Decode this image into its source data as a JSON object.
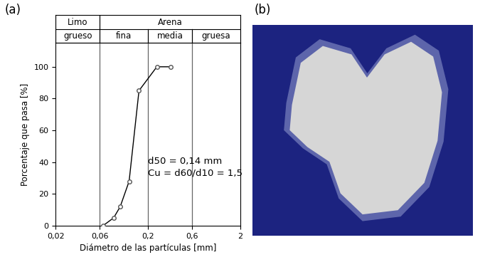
{
  "panel_labels": [
    "(a)",
    "(b)"
  ],
  "chart_data": {
    "type": "line",
    "xlabel": "Diámetro de las partículas [mm]",
    "ylabel": "Porcentaje que pasa [%]",
    "log": "x",
    "x": [
      0.065,
      0.085,
      0.1,
      0.125,
      0.16,
      0.25,
      0.35
    ],
    "values": [
      0,
      5,
      12,
      28,
      85,
      100,
      100
    ],
    "color": "#000000",
    "marker": "o",
    "xlim": [
      0.02,
      2
    ],
    "xticks": [
      {
        "value": 0.02,
        "label": "0,02"
      },
      {
        "value": 0.06,
        "label": "0,06"
      },
      {
        "value": 0.2,
        "label": "0,2"
      },
      {
        "value": 0.6,
        "label": "0,6"
      },
      2
    ],
    "ylim": [
      0,
      115
    ],
    "yticks": [
      0,
      20,
      40,
      60,
      80,
      100
    ],
    "annotations": [
      "d50 = 0,14 mm",
      "Cu = d60/d10 = 1,5"
    ],
    "classification": {
      "rows": [
        [
          {
            "label": "Limo",
            "from": 0.02,
            "to": 0.06
          },
          {
            "label": "Arena",
            "from": 0.06,
            "to": 2
          }
        ],
        [
          {
            "label": "grueso",
            "from": 0.02,
            "to": 0.06
          },
          {
            "label": "fina",
            "from": 0.06,
            "to": 0.2
          },
          {
            "label": "media",
            "from": 0.2,
            "to": 0.6
          },
          {
            "label": "gruesa",
            "from": 0.6,
            "to": 2
          }
        ]
      ]
    }
  }
}
